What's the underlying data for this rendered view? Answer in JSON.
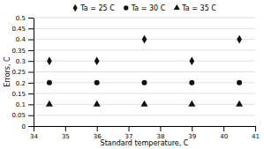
{
  "chart_data": {
    "type": "scatter",
    "xlabel": "Standard temperature, C",
    "ylabel": "Errors, C",
    "series": [
      {
        "name": "Ta = 25 C",
        "color": "#111111",
        "marker": "diamond",
        "x": [
          34.5,
          36,
          37.5,
          39,
          40.5
        ],
        "values": [
          0.3,
          0.3,
          0.4,
          0.3,
          0.4
        ]
      },
      {
        "name": "Ta = 30 C",
        "color": "#111111",
        "marker": "circle",
        "x": [
          34.5,
          36,
          37.5,
          39,
          40.5
        ],
        "values": [
          0.2,
          0.2,
          0.2,
          0.2,
          0.2
        ]
      },
      {
        "name": "Ta = 35 C",
        "color": "#111111",
        "marker": "triangle",
        "x": [
          34.5,
          36,
          37.5,
          39,
          40.5
        ],
        "values": [
          0.1,
          0.1,
          0.1,
          0.1,
          0.1
        ]
      }
    ],
    "xlim": [
      34,
      41
    ],
    "ylim": [
      0,
      0.5
    ],
    "xticks": [
      34,
      35,
      36,
      37,
      38,
      39,
      40,
      41
    ],
    "yticks": [
      0,
      0.05,
      0.1,
      0.15,
      0.2,
      0.25,
      0.3,
      0.35,
      0.4,
      0.45,
      0.5
    ],
    "grid": "y",
    "legend": "top"
  }
}
